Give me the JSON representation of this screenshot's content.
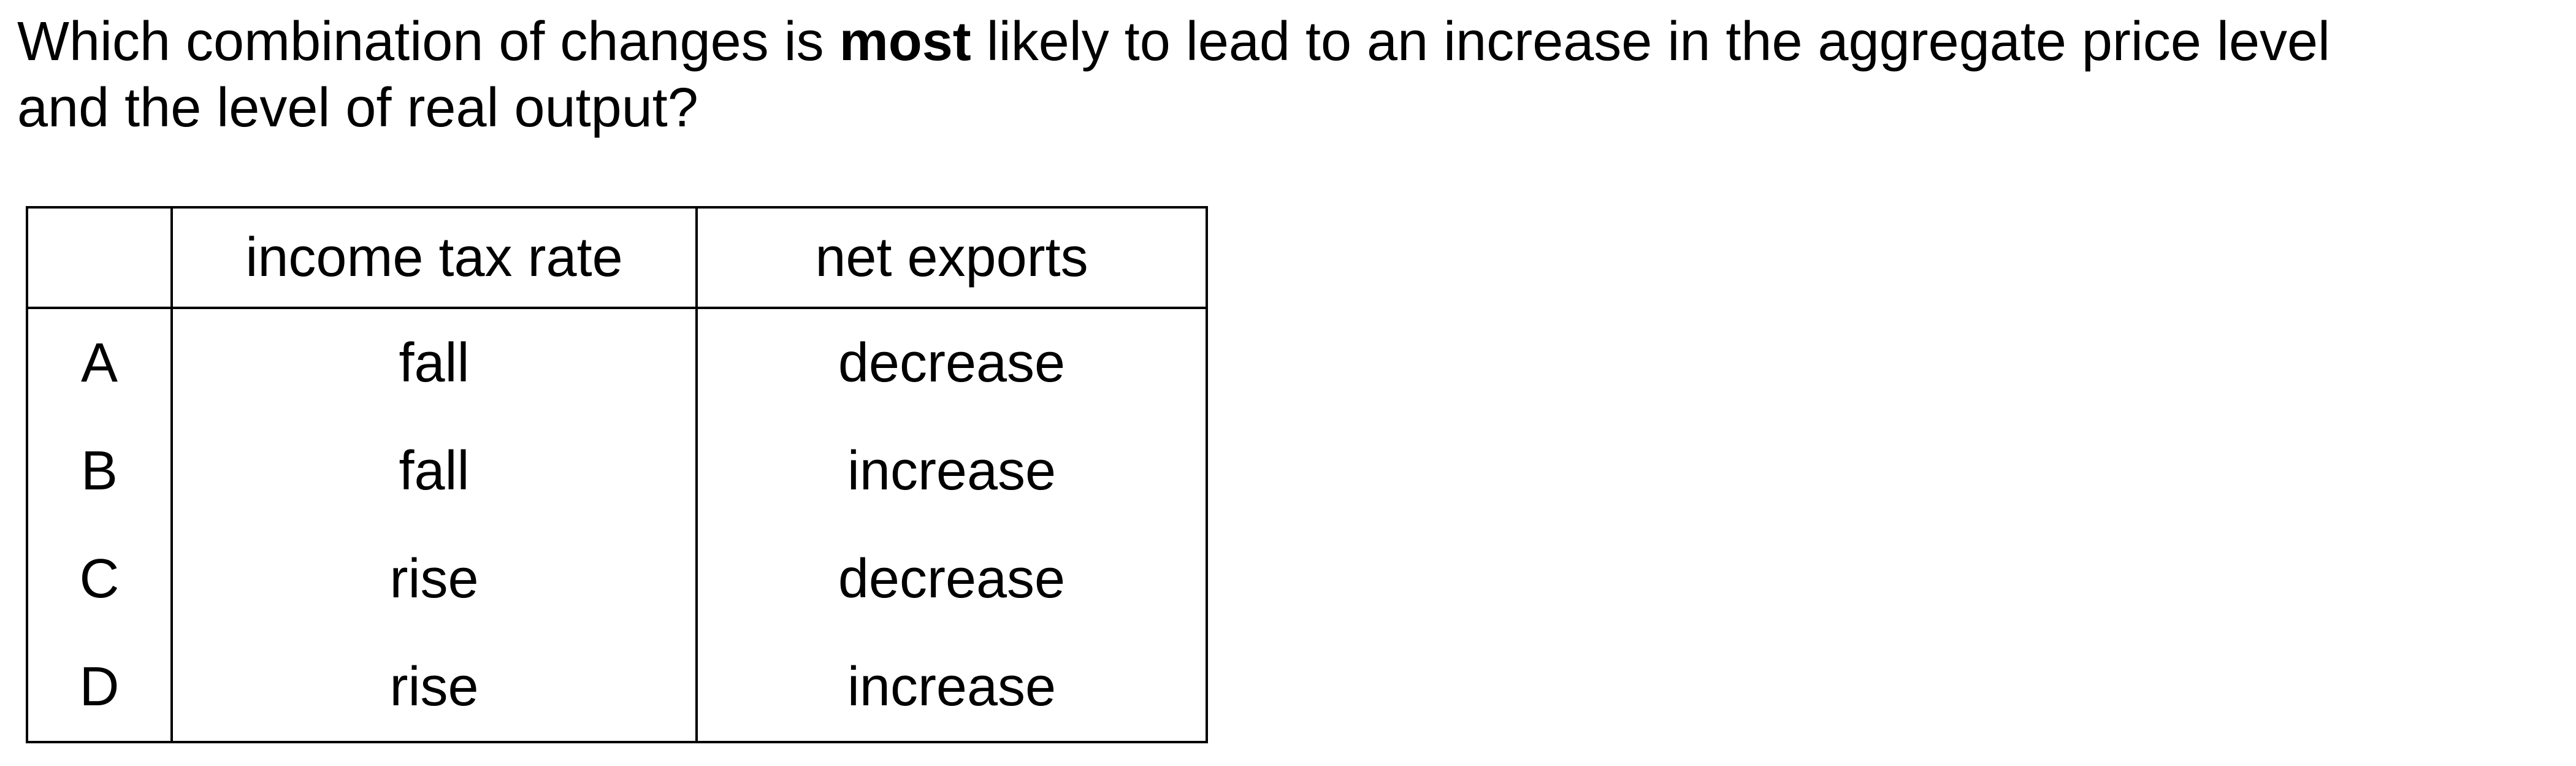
{
  "question": {
    "line1_before": "Which combination of changes is ",
    "line1_bold": "most",
    "line1_after": " likely to lead to an increase in the aggregate price level",
    "line2": "and the level of real output?"
  },
  "table": {
    "headers": {
      "letter": "",
      "income_tax_rate": "income tax rate",
      "net_exports": "net exports"
    },
    "rows": [
      {
        "letter": "A",
        "income_tax_rate": "fall",
        "net_exports": "decrease"
      },
      {
        "letter": "B",
        "income_tax_rate": "fall",
        "net_exports": "increase"
      },
      {
        "letter": "C",
        "income_tax_rate": "rise",
        "net_exports": "decrease"
      },
      {
        "letter": "D",
        "income_tax_rate": "rise",
        "net_exports": "increase"
      }
    ]
  }
}
